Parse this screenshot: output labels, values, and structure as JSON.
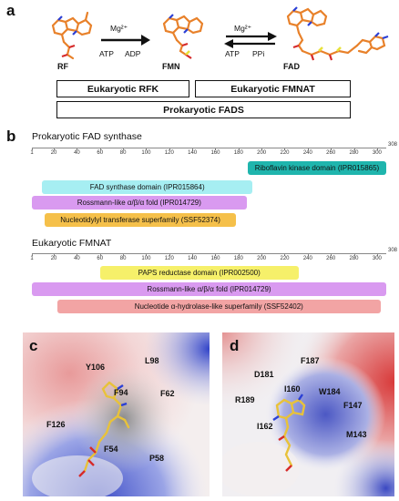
{
  "panel_a": {
    "letter": "a",
    "molecules": {
      "rf": "RF",
      "fmn": "FMN",
      "fad": "FAD"
    },
    "arrow1": {
      "metal": "Mg²⁺",
      "left": "ATP",
      "right": "ADP"
    },
    "arrow2": {
      "metal": "Mg²⁺",
      "left": "ATP",
      "right": "PPi"
    },
    "boxes": {
      "eukaryotic_rfk": "Eukaryotic RFK",
      "eukaryotic_fmnat": "Eukaryotic FMNAT",
      "prokaryotic_fads": "Prokaryotic FADS"
    }
  },
  "panel_b": {
    "letter": "b",
    "prokaryotic": {
      "title": "Prokaryotic FAD synthase",
      "length": 308,
      "length_label": "308",
      "ticks": [
        "1",
        "20",
        "40",
        "60",
        "80",
        "100",
        "120",
        "140",
        "160",
        "180",
        "200",
        "220",
        "240",
        "260",
        "280",
        "300"
      ],
      "domains": [
        {
          "label": "Riboflavin kinase domain (IPR015865)",
          "start": 188,
          "end": 308,
          "color": "#1fb5ad"
        },
        {
          "label": "FAD synthase domain (IPR015864)",
          "start": 10,
          "end": 192,
          "color": "#a6eef2"
        },
        {
          "label": "Rossmann-like α/β/α fold (IPR014729)",
          "start": 1,
          "end": 187,
          "color": "#d99af0"
        },
        {
          "label": "Nucleotidylyl transferase superfamily (SSF52374)",
          "start": 12,
          "end": 178,
          "color": "#f5c04a"
        }
      ]
    },
    "eukaryotic": {
      "title": "Eukaryotic FMNAT",
      "length": 308,
      "length_label": "308",
      "ticks": [
        "1",
        "20",
        "40",
        "60",
        "80",
        "100",
        "120",
        "140",
        "160",
        "180",
        "200",
        "220",
        "240",
        "260",
        "280",
        "300"
      ],
      "domains": [
        {
          "label": "PAPS reductase domain (IPR002500)",
          "start": 60,
          "end": 232,
          "color": "#f6f06a"
        },
        {
          "label": "Rossmann-like α/β/α fold (IPR014729)",
          "start": 1,
          "end": 308,
          "color": "#d99af0"
        },
        {
          "label": "Nucleotide α-hydrolase-like superfamily (SSF52402)",
          "start": 23,
          "end": 303,
          "color": "#f2a4a4"
        }
      ]
    }
  },
  "panel_c": {
    "letter": "c",
    "residues": [
      "Y106",
      "L98",
      "F94",
      "F62",
      "F126",
      "F54",
      "P58"
    ]
  },
  "panel_d": {
    "letter": "d",
    "residues": [
      "D181",
      "F187",
      "I160",
      "W184",
      "R189",
      "F147",
      "I162",
      "M143"
    ]
  }
}
